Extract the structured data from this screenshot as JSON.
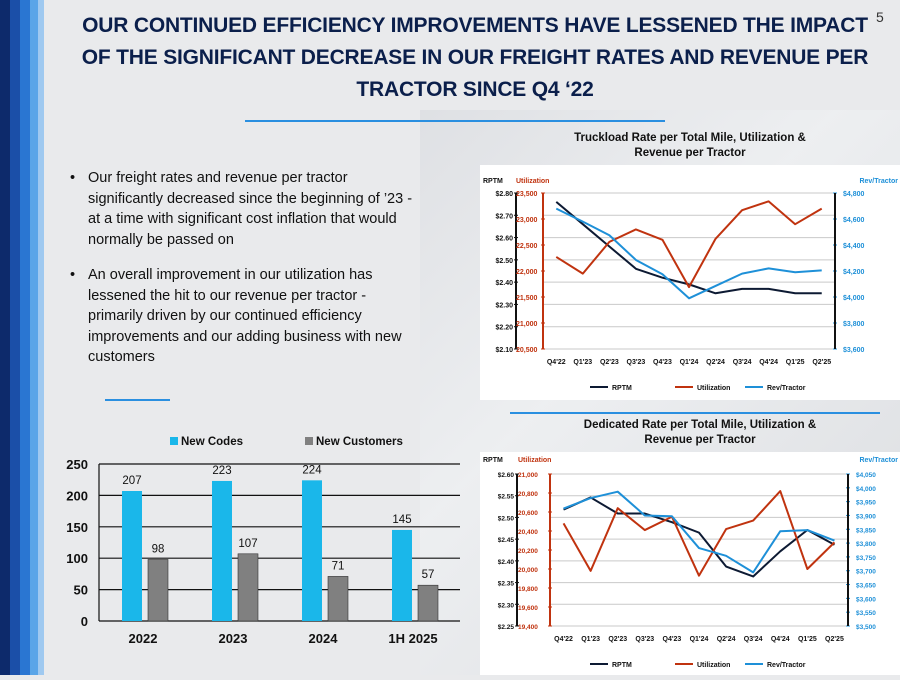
{
  "page_number": "5",
  "title": "OUR CONTINUED EFFICIENCY IMPROVEMENTS HAVE LESSENED THE IMPACT OF THE SIGNIFICANT DECREASE IN OUR FREIGHT RATES AND REVENUE PER TRACTOR SINCE Q4 ‘22",
  "bullets": [
    "Our freight rates and revenue per tractor significantly decreased since the beginning of ’23 - at a time with significant cost inflation that would normally be passed on",
    "An overall improvement in our utilization has lessened the hit to our revenue per tractor - primarily driven by our continued efficiency improvements and our adding business with new customers"
  ],
  "colors": {
    "rptm": "#0d1a33",
    "utilization": "#c0330f",
    "rev": "#1e90d8",
    "codes": "#1ab7ea",
    "customers": "#808080",
    "navy": "#0b1f4b"
  },
  "chart_data": [
    {
      "type": "bar",
      "title": "",
      "categories": [
        "2022",
        "2023",
        "2024",
        "1H 2025"
      ],
      "series": [
        {
          "name": "New Codes",
          "values": [
            207,
            223,
            224,
            145
          ]
        },
        {
          "name": "New Customers",
          "values": [
            98,
            107,
            71,
            57
          ]
        }
      ],
      "ylim": [
        0,
        250
      ],
      "yticks": [
        "0",
        "50",
        "100",
        "150",
        "200",
        "250"
      ],
      "legend": "top"
    },
    {
      "type": "line",
      "title": "Truckload Rate per Total Mile, Utilization & Revenue per Tractor",
      "categories": [
        "Q4'22",
        "Q1'23",
        "Q2'23",
        "Q3'23",
        "Q4'23",
        "Q1'24",
        "Q2'24",
        "Q3'24",
        "Q4'24",
        "Q1'25",
        "Q2'25"
      ],
      "axes": {
        "rptm": {
          "label": "RPTM",
          "range": [
            2.1,
            2.8
          ],
          "ticks": [
            "$2.10",
            "$2.20",
            "$2.30",
            "$2.40",
            "$2.50",
            "$2.60",
            "$2.70",
            "$2.80"
          ]
        },
        "utilization": {
          "label": "Utilization",
          "range": [
            20500,
            23500
          ],
          "ticks": [
            "20,500",
            "21,000",
            "21,500",
            "22,000",
            "22,500",
            "23,000",
            "23,500"
          ]
        },
        "rev": {
          "label": "Rev/Tractor",
          "range": [
            3600,
            4800
          ],
          "ticks": [
            "$3,600",
            "$3,800",
            "$4,000",
            "$4,200",
            "$4,400",
            "$4,600",
            "$4,800"
          ]
        }
      },
      "series": [
        {
          "name": "RPTM",
          "axis": "rptm",
          "values": [
            2.76,
            2.66,
            2.56,
            2.46,
            2.42,
            2.39,
            2.35,
            2.37,
            2.37,
            2.35,
            2.35
          ]
        },
        {
          "name": "Utilization",
          "axis": "utilization",
          "values": [
            22270,
            21950,
            22560,
            22800,
            22600,
            21690,
            22620,
            23170,
            23340,
            22900,
            23200
          ]
        },
        {
          "name": "Rev/Tractor",
          "axis": "rev",
          "values": [
            4680,
            4580,
            4475,
            4285,
            4175,
            3990,
            4085,
            4180,
            4220,
            4190,
            4205
          ]
        }
      ],
      "legend": "bottom"
    },
    {
      "type": "line",
      "title": "Dedicated Rate per Total Mile, Utilization & Revenue per Tractor",
      "categories": [
        "Q4'22",
        "Q1'23",
        "Q2'23",
        "Q3'23",
        "Q4'23",
        "Q1'24",
        "Q2'24",
        "Q3'24",
        "Q4'24",
        "Q1'25",
        "Q2'25"
      ],
      "axes": {
        "rptm": {
          "label": "RPTM",
          "range": [
            2.25,
            2.6
          ],
          "ticks": [
            "$2.25",
            "$2.30",
            "$2.35",
            "$2.40",
            "$2.45",
            "$2.50",
            "$2.55",
            "$2.60"
          ]
        },
        "utilization": {
          "label": "Utilization",
          "range": [
            19400,
            21000
          ],
          "ticks": [
            "19,400",
            "19,600",
            "19,800",
            "20,000",
            "20,200",
            "20,400",
            "20,600",
            "20,800",
            "21,000"
          ]
        },
        "rev": {
          "label": "Rev/Tractor",
          "range": [
            3500,
            4050
          ],
          "ticks": [
            "$3,500",
            "$3,550",
            "$3,600",
            "$3,650",
            "$3,700",
            "$3,750",
            "$3,800",
            "$3,850",
            "$3,900",
            "$3,950",
            "$4,000",
            "$4,050"
          ]
        }
      },
      "series": [
        {
          "name": "RPTM",
          "axis": "rptm",
          "values": [
            2.518,
            2.546,
            2.509,
            2.509,
            2.489,
            2.465,
            2.387,
            2.364,
            2.422,
            2.471,
            2.437
          ]
        },
        {
          "name": "Utilization",
          "axis": "utilization",
          "values": [
            20480,
            19980,
            20640,
            20410,
            20550,
            19930,
            20420,
            20510,
            20820,
            20000,
            20280
          ]
        },
        {
          "name": "Rev/Tractor",
          "axis": "rev",
          "values": [
            3925,
            3963,
            3986,
            3900,
            3897,
            3782,
            3754,
            3694,
            3843,
            3847,
            3809
          ]
        }
      ],
      "legend": "bottom"
    }
  ]
}
